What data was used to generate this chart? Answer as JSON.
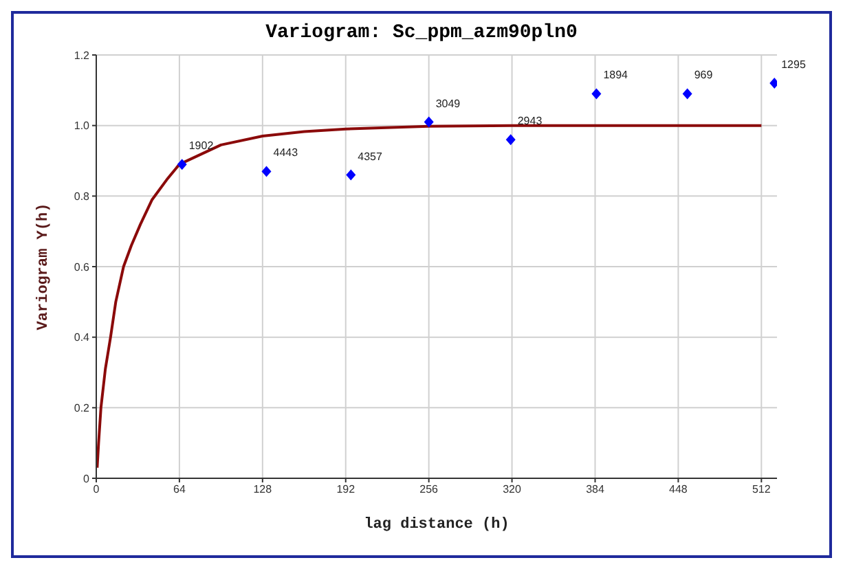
{
  "chart_data": {
    "type": "scatter",
    "title": "Variogram: Sc_ppm_azm90pln0",
    "xlabel": "lag distance (h)",
    "ylabel": "Variogram Y(h)",
    "xlim": [
      0,
      524
    ],
    "xticks": [
      0,
      64,
      128,
      192,
      256,
      320,
      384,
      448,
      512
    ],
    "ylim": [
      0,
      1.2
    ],
    "yticks": [
      0,
      0.2,
      0.4,
      0.6,
      0.8,
      {
        "value": 1,
        "label": "1.0"
      },
      1.2
    ],
    "grid": true,
    "annotations": [
      {
        "text": "1902",
        "x": 66,
        "y": 0.89
      },
      {
        "text": "4443",
        "x": 131,
        "y": 0.87
      },
      {
        "text": "4357",
        "x": 196,
        "y": 0.86
      },
      {
        "text": "3049",
        "x": 256,
        "y": 1.01
      },
      {
        "text": "2943",
        "x": 319,
        "y": 0.96
      },
      {
        "text": "1894",
        "x": 385,
        "y": 1.09
      },
      {
        "text": "969",
        "x": 455,
        "y": 1.09
      },
      {
        "text": "1295",
        "x": 522,
        "y": 1.12
      }
    ],
    "series": [
      {
        "color": "#0000ff",
        "marker": "diamond",
        "x": [
          66,
          131,
          196,
          256,
          319,
          385,
          455,
          522
        ],
        "values": [
          0.89,
          0.87,
          0.86,
          1.01,
          0.96,
          1.09,
          1.09,
          1.12
        ]
      },
      {
        "type": "line",
        "color": "#8b0a0a",
        "marker": "none",
        "x": [
          0.7,
          1.8,
          3.6,
          7,
          11,
          15,
          21,
          27,
          34,
          43,
          55,
          64,
          96,
          128,
          160,
          192,
          256,
          320,
          512
        ],
        "values": [
          0.03,
          0.1,
          0.2,
          0.31,
          0.4,
          0.5,
          0.6,
          0.66,
          0.72,
          0.79,
          0.85,
          0.89,
          0.945,
          0.97,
          0.983,
          0.99,
          0.998,
          1,
          1
        ]
      }
    ]
  }
}
